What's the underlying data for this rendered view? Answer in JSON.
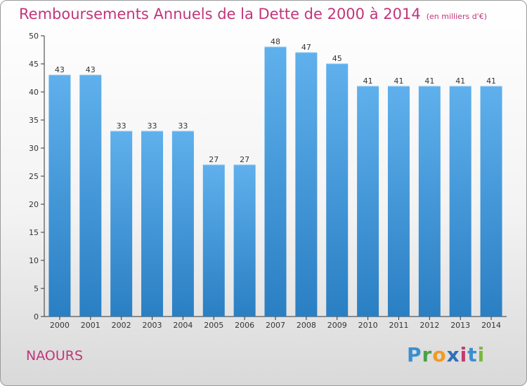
{
  "title": "Remboursements Annuels de la Dette de 2000 à 2014",
  "subtitle": "(en milliers d'€)",
  "commune": "NAOURS",
  "logo": {
    "text": "Proxiti",
    "letters": [
      "P",
      "r",
      "o",
      "x",
      "i",
      "t",
      "i"
    ],
    "colors": [
      "#3a8fd0",
      "#4aa14a",
      "#f29a1f",
      "#2e6fb8",
      "#c23a6e",
      "#3a8fd0",
      "#7ab83a"
    ]
  },
  "colors": {
    "accent": "#c2357a",
    "bar_top": "#5fb0ec",
    "bar_bottom": "#2a7fc3"
  },
  "chart_data": {
    "type": "bar",
    "categories": [
      "2000",
      "2001",
      "2002",
      "2003",
      "2004",
      "2005",
      "2006",
      "2007",
      "2008",
      "2009",
      "2010",
      "2011",
      "2012",
      "2013",
      "2014"
    ],
    "values": [
      43,
      43,
      33,
      33,
      33,
      27,
      27,
      48,
      47,
      45,
      41,
      41,
      41,
      41,
      41
    ],
    "title": "Remboursements Annuels de la Dette de 2000 à 2014",
    "subtitle": "(en milliers d'€)",
    "xlabel": "",
    "ylabel": "",
    "ylim": [
      0,
      50
    ],
    "yticks": [
      0,
      5,
      10,
      15,
      20,
      25,
      30,
      35,
      40,
      45,
      50
    ],
    "grid": false,
    "data_labels": true
  }
}
